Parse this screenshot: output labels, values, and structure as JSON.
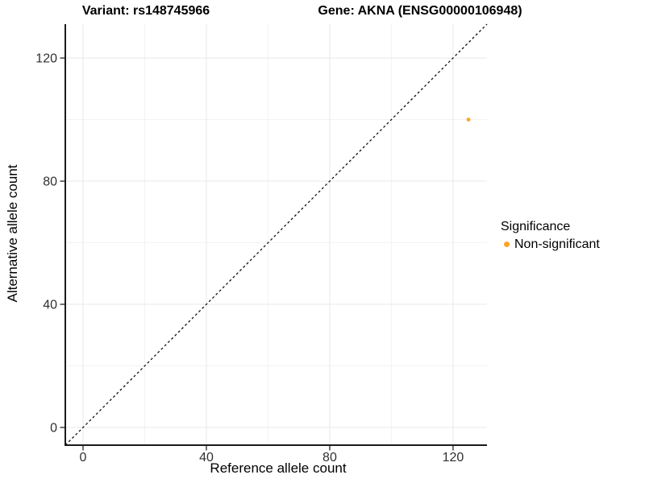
{
  "chart_data": {
    "type": "scatter",
    "title_left": "Variant: rs148745966",
    "title_right": "Gene: AKNA (ENSG00000106948)",
    "xlabel": "Reference allele count",
    "ylabel": "Alternative allele count",
    "xlim": [
      -5.75,
      131
    ],
    "ylim": [
      -5.75,
      131
    ],
    "xticks": [
      0,
      40,
      80,
      120
    ],
    "yticks": [
      0,
      40,
      80,
      120
    ],
    "minor_ticks": [
      20,
      60,
      100
    ],
    "grid": true,
    "equal_aspect": true,
    "points": [
      {
        "x": 125,
        "y": 100,
        "series": "Non-significant"
      }
    ],
    "reference_line": {
      "type": "identity",
      "style": "dashed"
    },
    "legend": {
      "title": "Significance",
      "position": "right",
      "entries": [
        {
          "label": "Non-significant",
          "color": "#FDA428"
        }
      ]
    },
    "colors": {
      "point": "#FDA428",
      "axis": "#1a1a1a",
      "tick": "#333333",
      "major_grid": "#e8e8e8",
      "minor_grid": "#f3f3f3",
      "dashed_line": "#111111"
    }
  }
}
